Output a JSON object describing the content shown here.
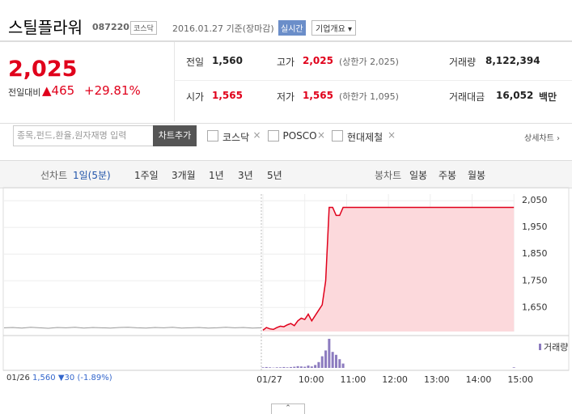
{
  "header": {
    "name": "스틸플라워",
    "code": "087220",
    "market": "코스닥",
    "date": "2016.01.27 기준(장마감)",
    "realtime": "실시간",
    "company": "기업개요"
  },
  "quote": {
    "price": "2,025",
    "change_label": "전일대비",
    "change": "465",
    "change_pct": "+29.81%",
    "stats": [
      {
        "label": "전일",
        "value": "1,560"
      },
      {
        "label": "고가",
        "value": "2,025",
        "note": "(상한가 2,025)"
      },
      {
        "label": "거래량",
        "value": "8,122,394"
      },
      {
        "label": "시가",
        "value": "1,565"
      },
      {
        "label": "저가",
        "value": "1,565",
        "note": "(하한가 1,095)"
      },
      {
        "label": "거래대금",
        "value": "16,052",
        "unit": "백만"
      }
    ]
  },
  "search": {
    "placeholder": "종목,펀드,환율,원자재명 입력",
    "button": "차트추가",
    "compare": [
      "코스닥",
      "POSCO",
      "현대제철"
    ],
    "detail": "상세차트 ›"
  },
  "tabs": {
    "line_label": "선차트",
    "line": [
      "1일(5분)",
      "1주일",
      "3개월",
      "1년",
      "3년",
      "5년"
    ],
    "candle_label": "봉차트",
    "candle": [
      "일봉",
      "주봉",
      "월봉"
    ]
  },
  "chart": {
    "type": "line",
    "ylim": [
      1560,
      2090
    ],
    "yticks": [
      {
        "value": 1650,
        "label": "1,650"
      },
      {
        "value": 1750,
        "label": "1,750"
      },
      {
        "value": 1850,
        "label": "1,850"
      },
      {
        "value": 1950,
        "label": "1,950"
      },
      {
        "value": 2050,
        "label": "2,050"
      }
    ],
    "xticks": [
      {
        "value": "09:00",
        "label": "01/27"
      },
      "10:00",
      "11:00",
      "12:00",
      "13:00",
      "14:00",
      "15:00"
    ],
    "x": [
      "09:00",
      "09:05",
      "09:10",
      "09:15",
      "09:20",
      "09:25",
      "09:30",
      "09:35",
      "09:40",
      "09:45",
      "09:50",
      "09:55",
      "10:00",
      "10:05",
      "10:10",
      "10:15",
      "10:20",
      "10:25",
      "10:30",
      "10:35",
      "10:40",
      "10:45",
      "10:50",
      "10:55",
      "15:00"
    ],
    "series": [
      {
        "color": "#e0001b",
        "fill": "#fcd9dc",
        "values": [
          1565,
          1575,
          1570,
          1568,
          1575,
          1580,
          1578,
          1585,
          1590,
          1582,
          1600,
          1610,
          1605,
          1625,
          1600,
          1620,
          1640,
          1660,
          1750,
          2025,
          2025,
          1995,
          1995,
          2025,
          2025
        ]
      },
      {
        "name": "거래량",
        "color": "#8c7bbf",
        "values": [
          2,
          3,
          2,
          1,
          2,
          2,
          3,
          2,
          3,
          4,
          6,
          5,
          4,
          8,
          5,
          10,
          20,
          40,
          60,
          100,
          55,
          45,
          30,
          15,
          2
        ]
      }
    ],
    "prev_day": {
      "color": "#999999",
      "values": [
        1574,
        1575,
        1573,
        1576,
        1574,
        1572,
        1575,
        1574,
        1576,
        1573,
        1575,
        1574,
        1573,
        1575,
        1576,
        1574,
        1573,
        1575,
        1574,
        1576,
        1573,
        1574,
        1575,
        1573,
        1574,
        1576,
        1574,
        1575,
        1573,
        1574
      ]
    }
  },
  "prev": {
    "date": "01/26",
    "price": "1,560",
    "change": "▼30",
    "pct": "(-1.89%)"
  }
}
